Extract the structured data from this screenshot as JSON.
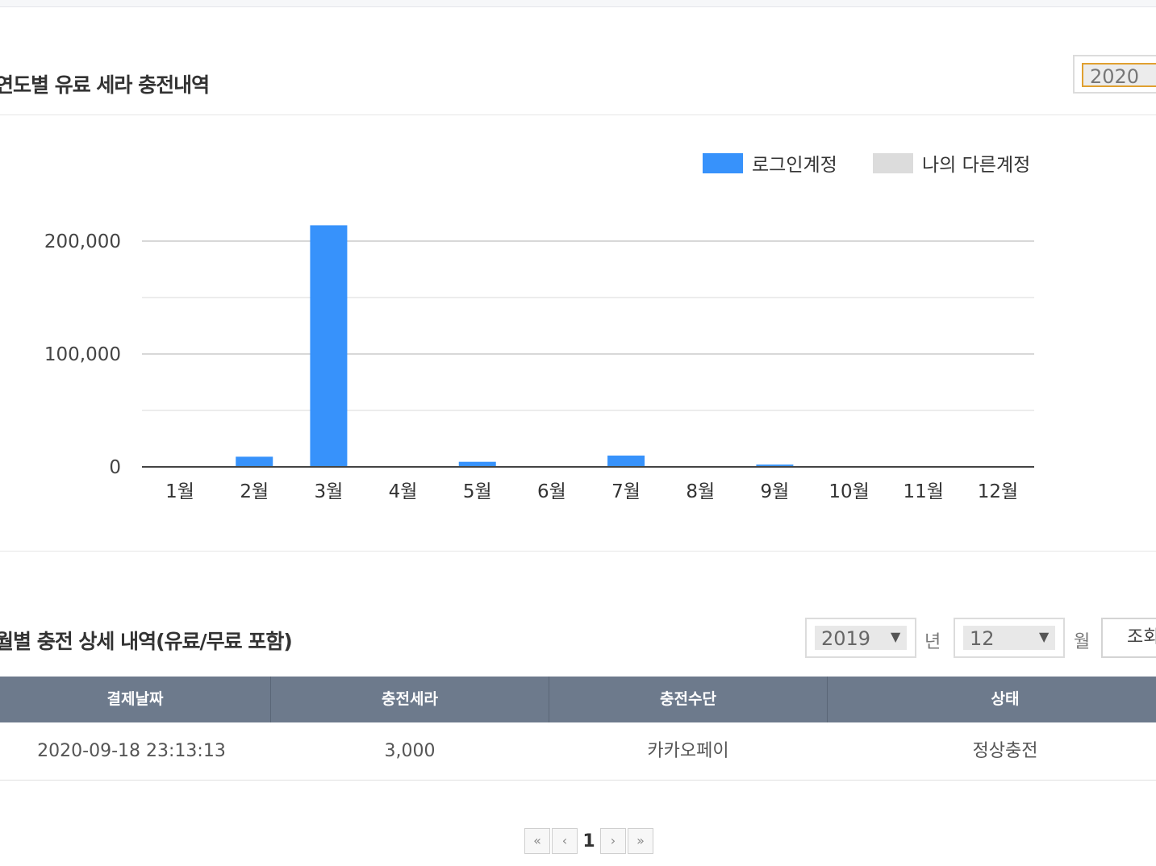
{
  "chart_section": {
    "title": "연도별 유료 세라 충전내역",
    "year_select": "2020"
  },
  "chart_data": {
    "type": "bar",
    "categories": [
      "1월",
      "2월",
      "3월",
      "4월",
      "5월",
      "6월",
      "7월",
      "8월",
      "9월",
      "10월",
      "11월",
      "12월"
    ],
    "series": [
      {
        "name": "로그인계정",
        "color": "#3792fb",
        "values": [
          0,
          9000,
          214000,
          0,
          4500,
          0,
          10000,
          0,
          2000,
          0,
          0,
          0
        ]
      },
      {
        "name": "나의 다른계정",
        "color": "#dcdcdc",
        "values": [
          0,
          0,
          0,
          0,
          0,
          0,
          0,
          0,
          0,
          0,
          0,
          0
        ]
      }
    ],
    "y_ticks": [
      "200,000",
      "100,000",
      "0"
    ],
    "ylim": [
      0,
      200000
    ],
    "grid": true,
    "legend_position": "top-right"
  },
  "detail_section": {
    "title": "월별 충전 상세 내역(유료/무료 포함)",
    "year_select": "2019",
    "year_unit": "년",
    "month_select": "12",
    "month_unit": "월",
    "query_button": "조회"
  },
  "table": {
    "headers": [
      "결제날짜",
      "충전세라",
      "충전수단",
      "상태"
    ],
    "rows": [
      [
        "2020-09-18 23:13:13",
        "3,000",
        "카카오페이",
        "정상충전"
      ]
    ]
  },
  "pagination": {
    "first": "«",
    "prev": "‹",
    "current": "1",
    "next": "›",
    "last": "»"
  }
}
